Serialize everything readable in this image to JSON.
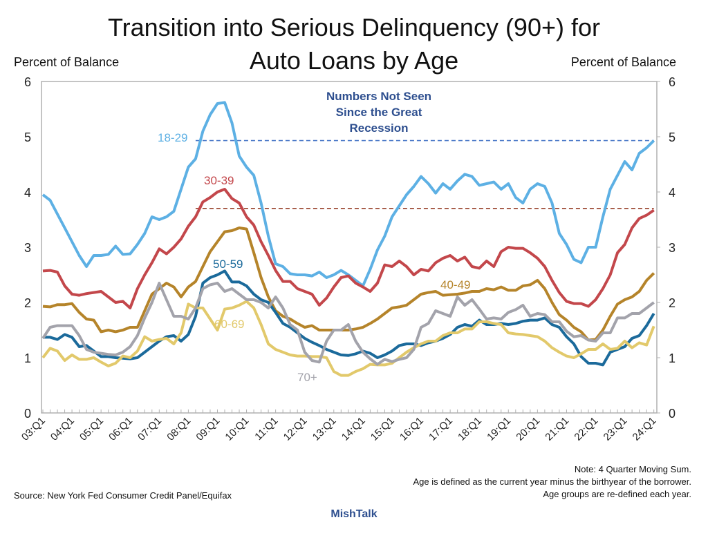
{
  "chart_data": {
    "type": "line",
    "title_line1": "Transition into Serious Delinquency (90+) for",
    "title_line2": "Auto Loans by Age",
    "ylabel_left": "Percent of Balance",
    "ylabel_right": "Percent of Balance",
    "ylim": [
      0,
      6
    ],
    "yticks": [
      "0",
      "1",
      "2",
      "3",
      "4",
      "5",
      "6"
    ],
    "x_start": "03:Q1",
    "x_end": "24:Q1",
    "xtick_labels": [
      "03:Q1",
      "04:Q1",
      "05:Q1",
      "06:Q1",
      "07:Q1",
      "08:Q1",
      "09:Q1",
      "10:Q1",
      "11:Q1",
      "12:Q1",
      "13:Q1",
      "14:Q1",
      "15:Q1",
      "16:Q1",
      "17:Q1",
      "18:Q1",
      "19:Q1",
      "20:Q1",
      "21:Q1",
      "22:Q1",
      "23:Q1",
      "24:Q1"
    ],
    "series": [
      {
        "name": "18-29",
        "color": "#5db0e4",
        "values": [
          3.95,
          3.85,
          3.6,
          3.35,
          3.1,
          2.85,
          2.65,
          2.85,
          2.85,
          2.87,
          3.02,
          2.87,
          2.88,
          3.05,
          3.25,
          3.55,
          3.5,
          3.55,
          3.65,
          4.05,
          4.45,
          4.6,
          5.1,
          5.4,
          5.6,
          5.62,
          5.25,
          4.65,
          4.45,
          4.3,
          3.8,
          3.2,
          2.7,
          2.65,
          2.52,
          2.5,
          2.5,
          2.48,
          2.55,
          2.45,
          2.5,
          2.58,
          2.5,
          2.4,
          2.3,
          2.6,
          2.95,
          3.2,
          3.55,
          3.75,
          3.95,
          4.1,
          4.28,
          4.15,
          3.98,
          4.15,
          4.05,
          4.2,
          4.32,
          4.28,
          4.12,
          4.15,
          4.18,
          4.05,
          4.15,
          3.9,
          3.8,
          4.05,
          4.15,
          4.1,
          3.8,
          3.25,
          3.05,
          2.78,
          2.72,
          3.0,
          3.0,
          3.55,
          4.05,
          4.3,
          4.55,
          4.4,
          4.7,
          4.8,
          4.93
        ]
      },
      {
        "name": "30-39",
        "color": "#c3474b",
        "values": [
          2.57,
          2.58,
          2.55,
          2.3,
          2.15,
          2.13,
          2.16,
          2.18,
          2.2,
          2.1,
          2.0,
          2.02,
          1.9,
          2.25,
          2.5,
          2.72,
          2.97,
          2.88,
          3.0,
          3.15,
          3.38,
          3.55,
          3.82,
          3.9,
          4.0,
          4.05,
          3.88,
          3.8,
          3.55,
          3.4,
          3.1,
          2.85,
          2.58,
          2.38,
          2.38,
          2.25,
          2.2,
          2.15,
          1.95,
          2.08,
          2.28,
          2.45,
          2.48,
          2.35,
          2.28,
          2.2,
          2.35,
          2.68,
          2.65,
          2.75,
          2.65,
          2.5,
          2.6,
          2.57,
          2.72,
          2.8,
          2.85,
          2.75,
          2.82,
          2.65,
          2.62,
          2.75,
          2.65,
          2.92,
          3.0,
          2.98,
          2.98,
          2.9,
          2.8,
          2.65,
          2.4,
          2.18,
          2.02,
          1.98,
          1.98,
          1.93,
          2.05,
          2.25,
          2.5,
          2.9,
          3.05,
          3.35,
          3.52,
          3.58,
          3.67
        ]
      },
      {
        "name": "40-49",
        "color": "#b5842a",
        "values": [
          1.93,
          1.92,
          1.96,
          1.96,
          1.98,
          1.82,
          1.7,
          1.68,
          1.47,
          1.5,
          1.47,
          1.5,
          1.55,
          1.55,
          1.85,
          2.15,
          2.25,
          2.35,
          2.28,
          2.1,
          2.28,
          2.38,
          2.65,
          2.92,
          3.1,
          3.28,
          3.3,
          3.35,
          3.33,
          2.9,
          2.45,
          2.1,
          1.85,
          1.75,
          1.7,
          1.62,
          1.55,
          1.58,
          1.5,
          1.5,
          1.5,
          1.5,
          1.5,
          1.52,
          1.55,
          1.62,
          1.7,
          1.8,
          1.9,
          1.92,
          1.95,
          2.05,
          2.15,
          2.18,
          2.2,
          2.13,
          2.14,
          2.15,
          2.17,
          2.2,
          2.2,
          2.25,
          2.23,
          2.28,
          2.22,
          2.22,
          2.3,
          2.32,
          2.4,
          2.25,
          2.0,
          1.78,
          1.68,
          1.55,
          1.47,
          1.32,
          1.33,
          1.5,
          1.75,
          1.97,
          2.05,
          2.1,
          2.2,
          2.4,
          2.53
        ]
      },
      {
        "name": "50-59",
        "color": "#1b6a9b",
        "values": [
          1.37,
          1.37,
          1.33,
          1.42,
          1.37,
          1.2,
          1.22,
          1.12,
          1.02,
          1.02,
          1.0,
          0.99,
          0.98,
          1.0,
          1.1,
          1.2,
          1.3,
          1.38,
          1.4,
          1.3,
          1.42,
          1.75,
          2.35,
          2.45,
          2.5,
          2.57,
          2.37,
          2.37,
          2.3,
          2.15,
          2.05,
          2.0,
          1.82,
          1.62,
          1.55,
          1.45,
          1.35,
          1.28,
          1.22,
          1.15,
          1.1,
          1.05,
          1.04,
          1.07,
          1.12,
          1.08,
          1.0,
          1.05,
          1.12,
          1.22,
          1.25,
          1.25,
          1.22,
          1.27,
          1.3,
          1.35,
          1.42,
          1.55,
          1.6,
          1.57,
          1.68,
          1.6,
          1.6,
          1.62,
          1.6,
          1.62,
          1.66,
          1.68,
          1.68,
          1.72,
          1.6,
          1.55,
          1.38,
          1.25,
          1.02,
          0.9,
          0.9,
          0.87,
          1.1,
          1.15,
          1.2,
          1.35,
          1.4,
          1.58,
          1.8
        ]
      },
      {
        "name": "60-69",
        "color": "#e2c96b",
        "values": [
          1.0,
          1.17,
          1.12,
          0.95,
          1.05,
          0.97,
          0.97,
          1.0,
          0.92,
          0.85,
          0.9,
          1.03,
          1.0,
          1.12,
          1.38,
          1.3,
          1.33,
          1.35,
          1.25,
          1.45,
          1.97,
          1.9,
          1.9,
          1.7,
          1.5,
          1.88,
          1.9,
          1.95,
          2.02,
          1.9,
          1.6,
          1.25,
          1.15,
          1.1,
          1.05,
          1.03,
          1.03,
          1.02,
          1.02,
          1.0,
          0.75,
          0.68,
          0.68,
          0.75,
          0.8,
          0.88,
          0.87,
          0.87,
          0.9,
          1.0,
          1.1,
          1.18,
          1.25,
          1.3,
          1.3,
          1.4,
          1.45,
          1.45,
          1.52,
          1.52,
          1.65,
          1.65,
          1.62,
          1.6,
          1.45,
          1.43,
          1.42,
          1.4,
          1.38,
          1.3,
          1.18,
          1.1,
          1.03,
          1.0,
          1.07,
          1.15,
          1.15,
          1.25,
          1.15,
          1.17,
          1.3,
          1.18,
          1.27,
          1.23,
          1.57
        ]
      },
      {
        "name": "70+",
        "color": "#a3a3ab",
        "values": [
          1.35,
          1.55,
          1.58,
          1.58,
          1.58,
          1.4,
          1.15,
          1.1,
          1.08,
          1.06,
          1.05,
          1.1,
          1.2,
          1.4,
          1.72,
          2.0,
          2.35,
          2.05,
          1.75,
          1.75,
          1.7,
          1.9,
          2.25,
          2.32,
          2.35,
          2.2,
          2.25,
          2.15,
          2.05,
          2.05,
          2.0,
          1.9,
          2.1,
          1.9,
          1.6,
          1.5,
          1.1,
          0.95,
          0.92,
          1.3,
          1.5,
          1.5,
          1.6,
          1.3,
          1.1,
          0.98,
          0.88,
          0.97,
          0.93,
          0.97,
          1.0,
          1.15,
          1.55,
          1.62,
          1.85,
          1.8,
          1.75,
          2.1,
          1.95,
          2.05,
          1.88,
          1.7,
          1.72,
          1.7,
          1.82,
          1.87,
          1.95,
          1.75,
          1.8,
          1.78,
          1.65,
          1.65,
          1.48,
          1.38,
          1.4,
          1.32,
          1.3,
          1.45,
          1.45,
          1.72,
          1.72,
          1.8,
          1.8,
          1.9,
          2.0
        ]
      }
    ],
    "reference_lines": [
      {
        "value": 4.93,
        "from": "08:Q2",
        "color": "#4a78c8"
      },
      {
        "value": 3.7,
        "from": "08:Q2",
        "color": "#8b2a10"
      }
    ],
    "annotation": [
      "Numbers Not Seen",
      "Since the Great",
      "Recession"
    ],
    "annotation_color": "#2e4f8f"
  },
  "footer": {
    "source": "Source: New York Fed Consumer Credit Panel/Equifax",
    "note1": "Note: 4 Quarter Moving Sum.",
    "note2": "Age is defined as the current year minus the birthyear of the borrower.",
    "note3": "Age groups are re-defined each year.",
    "brand": "MishTalk"
  }
}
